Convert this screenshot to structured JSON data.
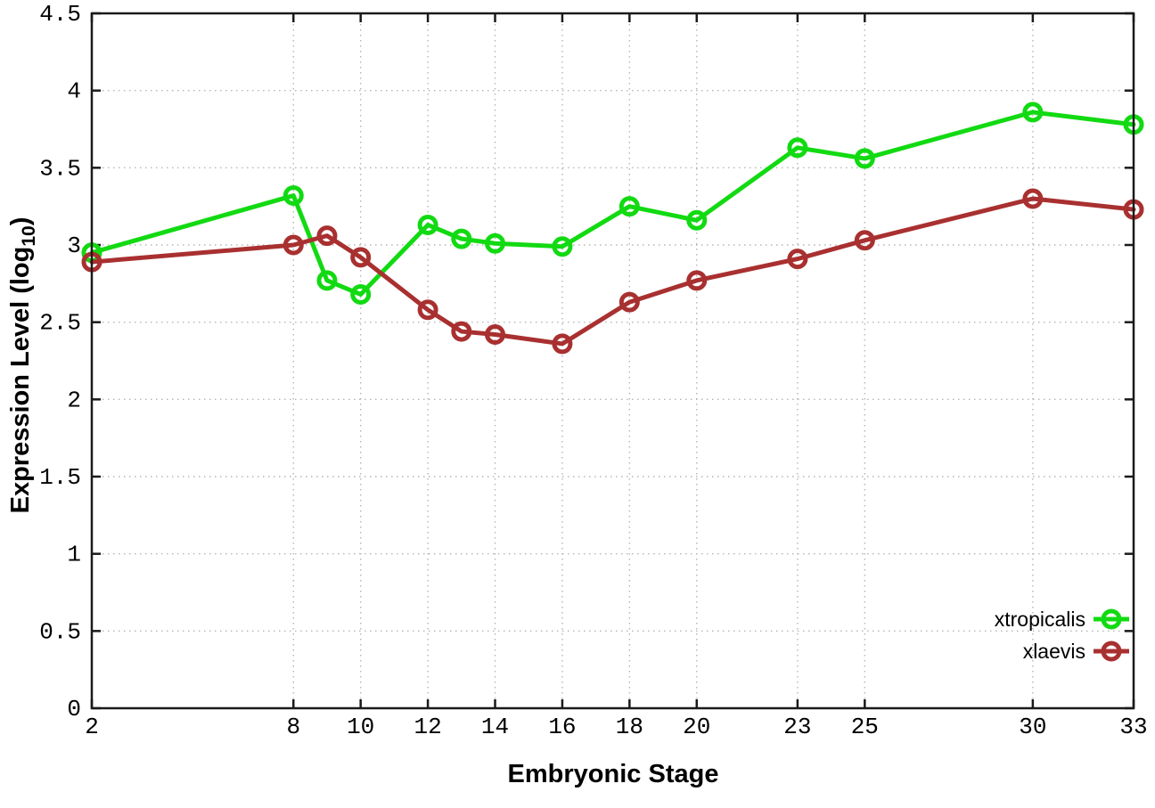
{
  "chart_data": {
    "type": "line",
    "title": "",
    "xlabel": "Embryonic Stage",
    "ylabel": "Expression Level (log10)",
    "ylabel_parts": {
      "prefix": "Expression Level (log",
      "subscript": "10",
      "suffix": ")"
    },
    "xlim": [
      2,
      33
    ],
    "ylim": [
      0,
      4.5
    ],
    "grid": true,
    "legend_position": "bottom-right",
    "x": [
      2,
      8,
      9,
      10,
      12,
      13,
      14,
      16,
      18,
      20,
      23,
      25,
      30,
      33
    ],
    "series": [
      {
        "name": "xtropicalis",
        "color": "#12da12",
        "marker": "open-circle",
        "values": [
          2.95,
          3.32,
          2.77,
          2.68,
          3.13,
          3.04,
          3.01,
          2.99,
          3.25,
          3.16,
          3.63,
          3.56,
          3.86,
          3.78
        ]
      },
      {
        "name": "xlaevis",
        "color": "#a93030",
        "marker": "open-circle",
        "values": [
          2.89,
          3.0,
          3.06,
          2.92,
          2.58,
          2.44,
          2.42,
          2.36,
          2.63,
          2.77,
          2.91,
          3.03,
          3.3,
          3.23
        ]
      }
    ],
    "xticks": {
      "values": [
        2,
        8,
        10,
        12,
        14,
        16,
        18,
        20,
        23,
        25,
        30,
        33
      ],
      "labels": [
        "2",
        "8",
        "10",
        "12",
        "14",
        "16",
        "18",
        "20",
        "23",
        "25",
        "30",
        "33"
      ]
    },
    "yticks": {
      "values": [
        0,
        0.5,
        1,
        1.5,
        2,
        2.5,
        3,
        3.5,
        4,
        4.5
      ],
      "labels": [
        "0",
        "0.5",
        "1",
        "1.5",
        "2",
        "2.5",
        "3",
        "3.5",
        "4",
        "4.5"
      ]
    },
    "colors": {
      "background": "#ffffff",
      "axis": "#1a1a1a",
      "grid": "#b5b5b5",
      "text": "#000000"
    }
  },
  "legend": {
    "items": [
      {
        "label": "xtropicalis"
      },
      {
        "label": "xlaevis"
      }
    ]
  }
}
